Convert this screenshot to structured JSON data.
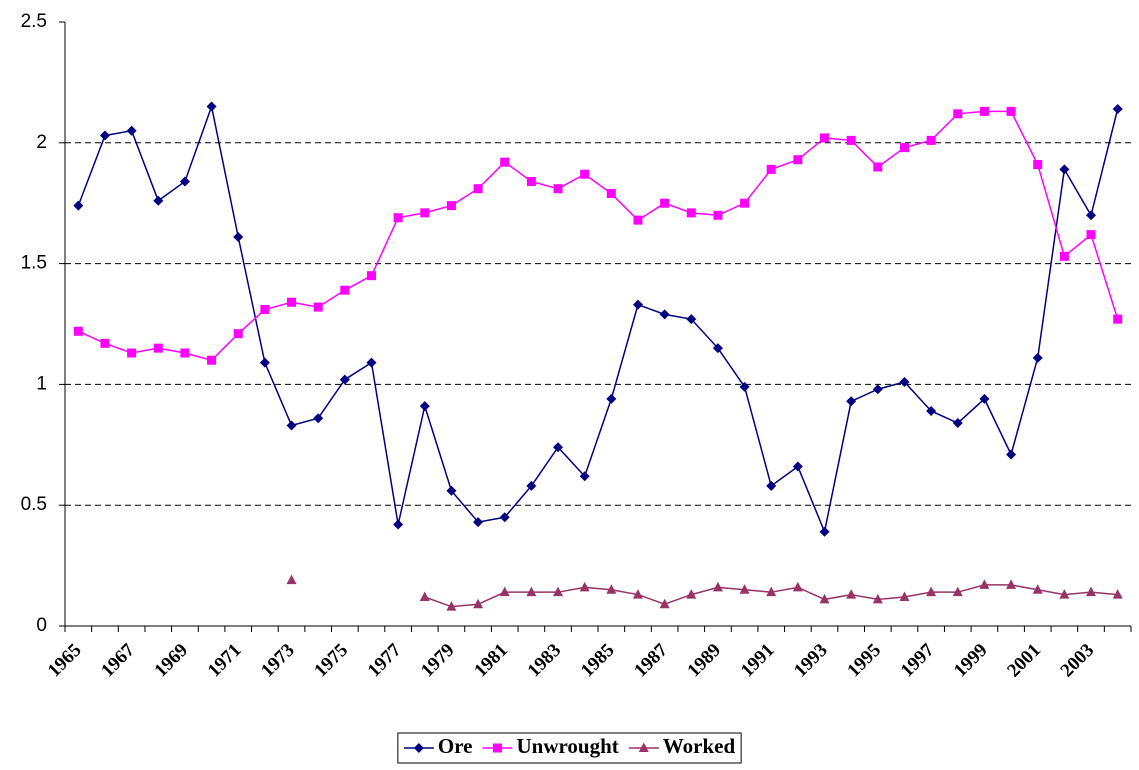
{
  "chart_data": {
    "type": "line",
    "categories": [
      "1965",
      null,
      "1967",
      null,
      "1969",
      null,
      "1971",
      null,
      "1973",
      null,
      "1975",
      null,
      "1977",
      null,
      "1979",
      null,
      "1981",
      null,
      "1983",
      null,
      "1985",
      null,
      "1987",
      null,
      "1989",
      null,
      "1991",
      null,
      "1993",
      null,
      "1995",
      null,
      "1997",
      null,
      "1999",
      null,
      "2001",
      null,
      "2003",
      null
    ],
    "series": [
      {
        "name": "Ore",
        "color": "#000080",
        "marker": "diamond",
        "values": [
          1.74,
          2.03,
          2.05,
          1.76,
          1.84,
          2.15,
          1.61,
          1.09,
          0.83,
          0.86,
          1.02,
          1.09,
          0.42,
          0.91,
          0.56,
          0.43,
          0.45,
          0.58,
          0.74,
          0.62,
          0.94,
          1.33,
          1.29,
          1.27,
          1.15,
          0.99,
          0.58,
          0.66,
          0.39,
          0.93,
          0.98,
          1.01,
          0.89,
          0.84,
          0.94,
          0.71,
          1.11,
          1.89,
          1.7,
          2.14
        ]
      },
      {
        "name": "Unwrought",
        "color": "#ff00ff",
        "marker": "square",
        "values": [
          1.22,
          1.17,
          1.13,
          1.15,
          1.13,
          1.1,
          1.21,
          1.31,
          1.34,
          1.32,
          1.39,
          1.45,
          1.69,
          1.71,
          1.74,
          1.81,
          1.92,
          1.84,
          1.81,
          1.87,
          1.79,
          1.68,
          1.75,
          1.71,
          1.7,
          1.75,
          1.89,
          1.93,
          2.02,
          2.01,
          1.9,
          1.98,
          2.01,
          2.12,
          2.13,
          2.13,
          1.91,
          1.53,
          1.62,
          1.27
        ]
      },
      {
        "name": "Worked",
        "color": "#993366",
        "marker": "triangle",
        "values": [
          null,
          null,
          null,
          null,
          null,
          null,
          null,
          null,
          0.19,
          null,
          null,
          null,
          null,
          0.12,
          0.08,
          0.09,
          0.14,
          0.14,
          0.14,
          0.16,
          0.15,
          0.13,
          0.09,
          0.13,
          0.16,
          0.15,
          0.14,
          0.16,
          0.11,
          0.13,
          0.11,
          0.12,
          0.14,
          0.14,
          0.17,
          0.17,
          0.15,
          0.13,
          0.14,
          0.13
        ]
      }
    ],
    "ylim": [
      0,
      2.5
    ],
    "yticks": [
      0,
      0.5,
      1,
      1.5,
      2,
      2.5
    ],
    "grid": true,
    "legend": "bottom"
  }
}
